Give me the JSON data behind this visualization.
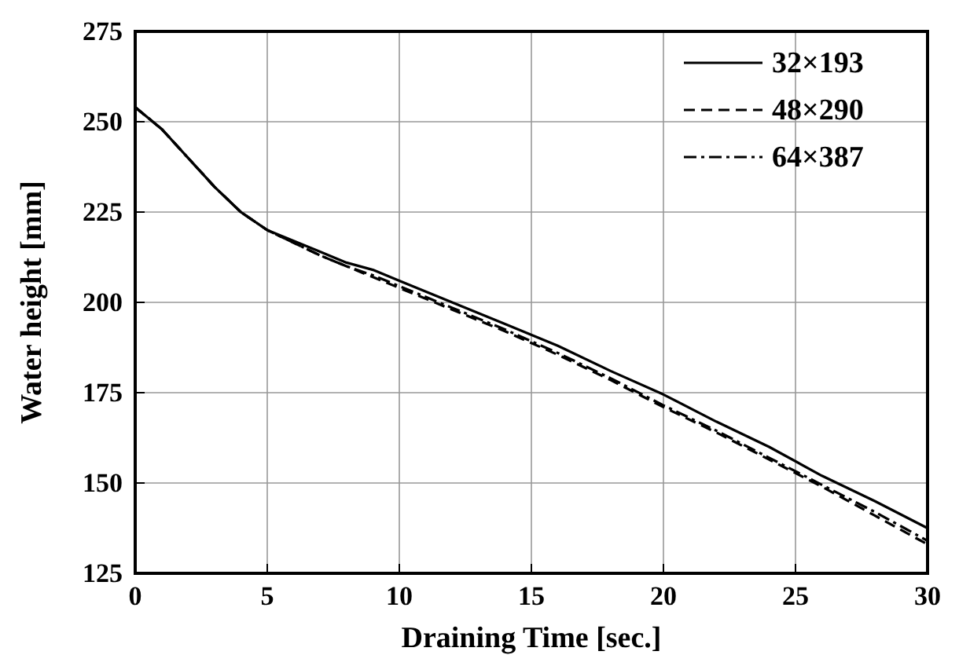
{
  "chart_data": {
    "type": "line",
    "xlabel": "Draining Time [sec.]",
    "ylabel": "Water height [mm]",
    "xlim": [
      0,
      30
    ],
    "xticks": [
      0,
      5,
      10,
      15,
      20,
      25,
      30
    ],
    "ylim": [
      125,
      275
    ],
    "yticks": [
      125,
      150,
      175,
      200,
      225,
      250,
      275
    ],
    "grid": true,
    "legend": "top right",
    "x": [
      0,
      1,
      2,
      3,
      4,
      5,
      6,
      7,
      8,
      9,
      10,
      12,
      14,
      16,
      18,
      20,
      22,
      24,
      26,
      28,
      30
    ],
    "series": [
      {
        "name": "32×193",
        "color": "#000000",
        "line_style": "solid",
        "values": [
          254,
          248,
          240,
          232,
          225,
          220,
          217,
          214,
          211,
          209,
          206,
          200,
          194,
          188,
          181,
          174.5,
          167,
          160,
          152,
          145,
          137.5
        ]
      },
      {
        "name": "48×290",
        "color": "#000000",
        "line_style": "dashed",
        "values": [
          254,
          248,
          240,
          232,
          225,
          220,
          216.5,
          213,
          210,
          207,
          204,
          198,
          192,
          185.5,
          178.5,
          171,
          164,
          156.5,
          149,
          141,
          133
        ]
      },
      {
        "name": "64×387",
        "color": "#000000",
        "line_style": "dashdot",
        "values": [
          254,
          248,
          240,
          232,
          225,
          220,
          216.5,
          213,
          210,
          207.5,
          204.5,
          198.5,
          192.5,
          186,
          179,
          171.5,
          164.5,
          157,
          149.5,
          142,
          134
        ]
      }
    ]
  }
}
